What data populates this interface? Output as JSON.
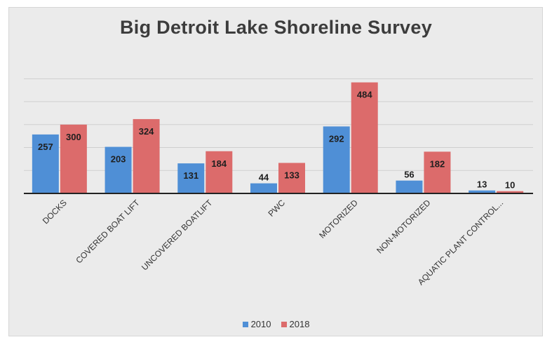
{
  "chart_data": {
    "type": "bar",
    "title": "Big Detroit Lake Shoreline Survey",
    "categories": [
      "DOCKS",
      "COVERED BOAT LIFT",
      "UNCOVERED BOATLIFT",
      "PWC",
      "MOTORIZED",
      "NON-MOTORIZED",
      "AQUATIC PLANT CONTROL..."
    ],
    "series": [
      {
        "name": "2010",
        "color": "#4f8fd6",
        "values": [
          257,
          203,
          131,
          44,
          292,
          56,
          13
        ]
      },
      {
        "name": "2018",
        "color": "#dc6b6b",
        "values": [
          300,
          324,
          184,
          133,
          484,
          182,
          10
        ]
      }
    ],
    "ylim": [
      0,
      500
    ],
    "grid": true,
    "legend_position": "bottom"
  }
}
